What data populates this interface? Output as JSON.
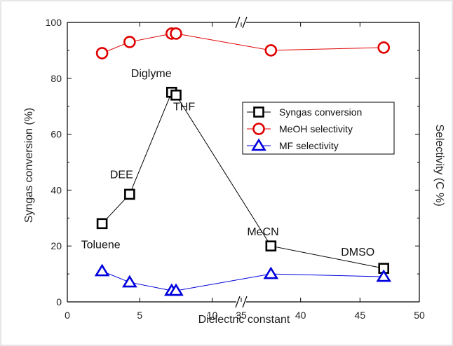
{
  "chart_data": {
    "type": "scatter",
    "xlabel": "Dielectric constant",
    "ylabel": "Syngas conversion (%)",
    "ylabel_right": "Selectivity (C %)",
    "ylim": [
      0,
      100
    ],
    "x_axis_break": {
      "segment1": [
        0,
        12
      ],
      "segment2": [
        35,
        50
      ]
    },
    "x_ticks": [
      "0",
      "5",
      "10",
      "35",
      "40",
      "45",
      "50"
    ],
    "y_ticks": [
      "0",
      "20",
      "40",
      "60",
      "80",
      "100"
    ],
    "legend_position": "upper-right",
    "series": [
      {
        "name": "Syngas conversion",
        "color": "#000000",
        "marker": "square",
        "x": [
          2.4,
          4.3,
          7.2,
          7.5,
          37.5,
          47
        ],
        "y": [
          28,
          38.5,
          75,
          74,
          20,
          12
        ]
      },
      {
        "name": "MeOH selectivity",
        "color": "#e00000",
        "marker": "circle",
        "x": [
          2.4,
          4.3,
          7.2,
          7.5,
          37.5,
          47
        ],
        "y": [
          89,
          93,
          96,
          96,
          90,
          91
        ]
      },
      {
        "name": "MF selectivity",
        "color": "#0000dd",
        "marker": "triangle",
        "x": [
          2.4,
          4.3,
          7.2,
          7.5,
          37.5,
          47
        ],
        "y": [
          11,
          7,
          4,
          4,
          10,
          9
        ]
      }
    ],
    "annotations": [
      {
        "text": "Toluene",
        "x": 2.4,
        "y": 28
      },
      {
        "text": "DEE",
        "x": 4.3,
        "y": 38.5
      },
      {
        "text": "Diglyme",
        "x": 7.2,
        "y": 75
      },
      {
        "text": "THF",
        "x": 7.5,
        "y": 74
      },
      {
        "text": "MeCN",
        "x": 37.5,
        "y": 20
      },
      {
        "text": "DMSO",
        "x": 47,
        "y": 12
      }
    ]
  }
}
